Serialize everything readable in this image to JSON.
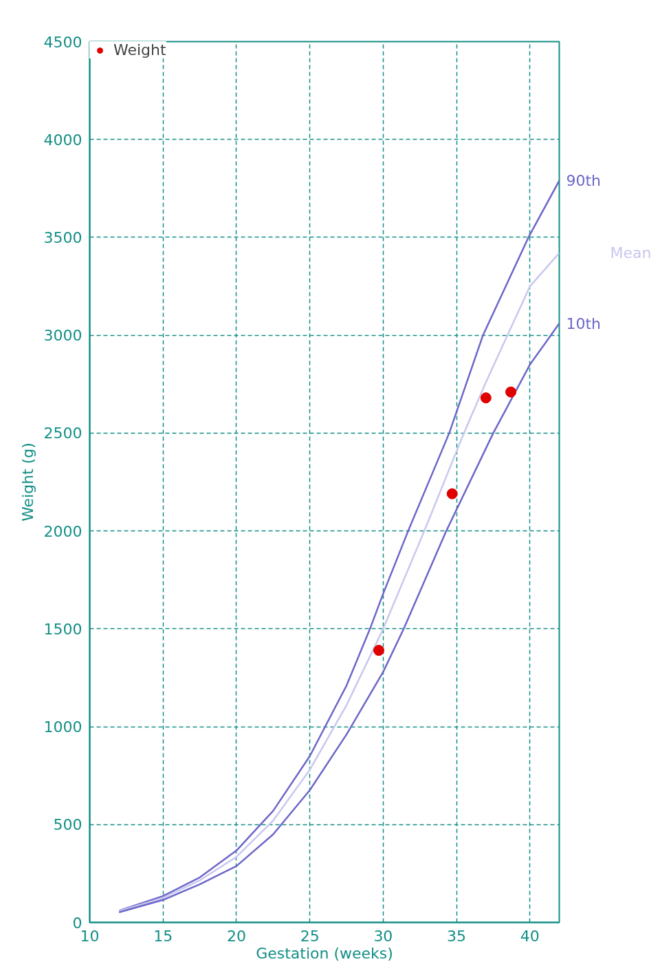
{
  "chart_data": {
    "type": "line",
    "xlabel": "Gestation (weeks)",
    "ylabel": "Weight (g)",
    "xlim": [
      10,
      42
    ],
    "xticks": [
      10,
      15,
      20,
      25,
      30,
      35,
      40
    ],
    "ylim": [
      0,
      4500
    ],
    "yticks": [
      0,
      500,
      1000,
      1500,
      2000,
      2500,
      3000,
      3500,
      4000,
      4500
    ],
    "grid": true,
    "legend": "top left",
    "line_style": "solid",
    "series": [
      {
        "type": "line",
        "name": "90th",
        "color": "#6c66c8",
        "x": [
          12,
          15,
          17.5,
          20,
          22.5,
          25,
          27.5,
          29.1,
          30,
          31.7,
          34.5,
          36.8,
          39.9,
          42
        ],
        "values": [
          60,
          135,
          230,
          367,
          570,
          850,
          1210,
          1500,
          1680,
          2000,
          2500,
          3000,
          3500,
          3790
        ]
      },
      {
        "type": "line",
        "name": "Mean",
        "color": "#c9c7ee",
        "x": [
          12,
          15,
          17.5,
          20,
          22.5,
          25,
          27.5,
          30,
          32.8,
          35.5,
          37,
          40,
          42
        ],
        "values": [
          58,
          125,
          215,
          335,
          520,
          780,
          1110,
          1500,
          2000,
          2500,
          2760,
          3250,
          3420
        ]
      },
      {
        "type": "line",
        "name": "10th",
        "color": "#6c66c8",
        "x": [
          12,
          15,
          17.5,
          20,
          22.5,
          25,
          27.5,
          30,
          31.4,
          34.3,
          37.5,
          40,
          42
        ],
        "values": [
          52,
          115,
          195,
          288,
          450,
          676,
          960,
          1280,
          1500,
          2000,
          2500,
          2850,
          3060
        ]
      },
      {
        "type": "scatter",
        "name": "Weight",
        "color": "#e00000",
        "marker": "circle",
        "x": [
          29.7,
          34.7,
          37.0,
          38.7
        ],
        "values": [
          1390,
          2190,
          2680,
          2710
        ]
      }
    ]
  }
}
